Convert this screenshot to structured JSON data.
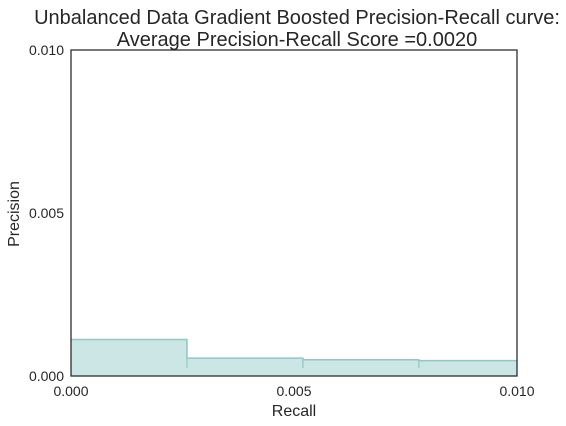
{
  "chart_data": {
    "type": "area",
    "title_line1": "Unbalanced Data Gradient Boosted Precision-Recall curve:",
    "title_line2": "Average Precision-Recall Score =0.0020",
    "xlabel": "Recall",
    "ylabel": "Precision",
    "xlim": [
      0.0,
      0.01
    ],
    "ylim": [
      0.0,
      0.01
    ],
    "x_ticks": [
      0.0,
      0.005,
      0.01
    ],
    "x_tick_labels": [
      "0.000",
      "0.005",
      "0.010"
    ],
    "y_ticks": [
      0.0,
      0.005,
      0.01
    ],
    "y_tick_labels": [
      "0.000",
      "0.005",
      "0.010"
    ],
    "grid": false,
    "step": "post",
    "series": [
      {
        "recall": [
          0.0,
          0.0026,
          0.0052,
          0.0078,
          0.0105
        ],
        "precision": [
          0.00112,
          0.00055,
          0.0005,
          0.00047,
          0.00047
        ]
      }
    ],
    "colors": {
      "fill": "#cce5e5",
      "line": "#8ec9c5",
      "axes": "#262626"
    }
  }
}
